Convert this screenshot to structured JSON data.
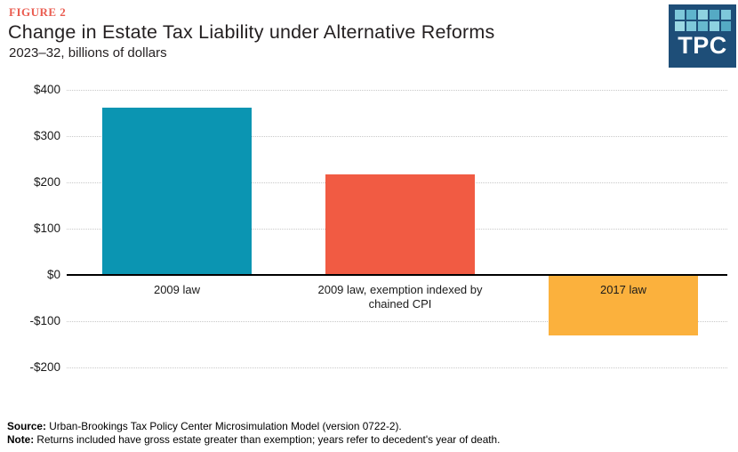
{
  "header": {
    "figure_label": "FIGURE 2",
    "title": "Change in Estate Tax Liability under Alternative Reforms",
    "subtitle": "2023–32, billions of dollars",
    "logo_text": "TPC",
    "colors": {
      "figure_label": "#ea5c50",
      "logo_background": "#1e4e78"
    }
  },
  "chart_data": {
    "type": "bar",
    "title": "Change in Estate Tax Liability under Alternative Reforms",
    "subtitle": "2023–32, billions of dollars",
    "unit": "billions of dollars",
    "categories": [
      "2009 law",
      "2009 law, exemption indexed by chained CPI",
      "2017 law"
    ],
    "values": [
      363,
      218,
      -130
    ],
    "bar_colors": [
      "#0b95b2",
      "#f15b43",
      "#fbb13d"
    ],
    "ylim": [
      -200,
      400
    ],
    "y_tick_step": 100,
    "y_ticks": [
      {
        "label": "$400",
        "value": 400
      },
      {
        "label": "$300",
        "value": 300
      },
      {
        "label": "$200",
        "value": 200
      },
      {
        "label": "$100",
        "value": 100
      },
      {
        "label": "$0",
        "value": 0
      },
      {
        "label": "-$100",
        "value": -100
      },
      {
        "label": "-$200",
        "value": -200
      }
    ],
    "grid": "horizontal dotted",
    "zero_line": "solid black",
    "legend": "none"
  },
  "logo_grid_colors": [
    "#7ec8da",
    "#5fb4cc",
    "#8ed2e0",
    "#55aac4",
    "#7ec8da",
    "#9bd8e4",
    "#7ec8da",
    "#66b8ce",
    "#8ed2e0",
    "#55aac4"
  ],
  "footer": {
    "source_label": "Source:",
    "source_text": " Urban-Brookings Tax Policy Center Microsimulation Model (version 0722-2).",
    "note_label": "Note:",
    "note_text": " Returns included have gross estate greater than exemption; years refer to decedent's year of death."
  }
}
